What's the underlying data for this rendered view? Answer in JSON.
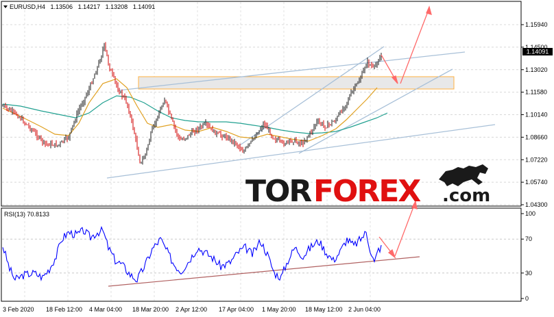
{
  "header": {
    "symbol": "EURUSD,H4",
    "open": "1.13506",
    "high": "1.14217",
    "low": "1.13208",
    "close": "1.14091"
  },
  "price_axis": {
    "ticks": [
      "1.15940",
      "1.14500",
      "1.13020",
      "1.11580",
      "1.10140",
      "1.08660",
      "1.07220",
      "1.05740",
      "1.04300"
    ],
    "current_price": "1.14091"
  },
  "rsi": {
    "label": "RSI(13) 70.8133",
    "ticks": [
      "100",
      "70",
      "30",
      "0"
    ]
  },
  "time_axis": {
    "labels": [
      "3 Feb 2020",
      "18 Feb 12:00",
      "4 Mar 04:00",
      "18 Mar 20:00",
      "2 Apr 12:00",
      "17 Apr 04:00",
      "1 May 20:00",
      "18 May 12:00",
      "2 Jun 04:00"
    ]
  },
  "logo": {
    "tor": "TOR",
    "forex": "FOREX",
    "dotcom": ".com"
  },
  "colors": {
    "bull": "#1a1a1a",
    "bear": "#d00000",
    "ma_fast": "#e0a020",
    "ma_slow": "#20a090",
    "rsi_line": "#0000ff",
    "channel": "#a8c0d8",
    "arrow": "#ff6a6a",
    "zone_fill": "#e8e8e8",
    "zone_border": "#ffb040",
    "rsi_support": "#b06060",
    "price_tag_bg": "#000000"
  }
}
